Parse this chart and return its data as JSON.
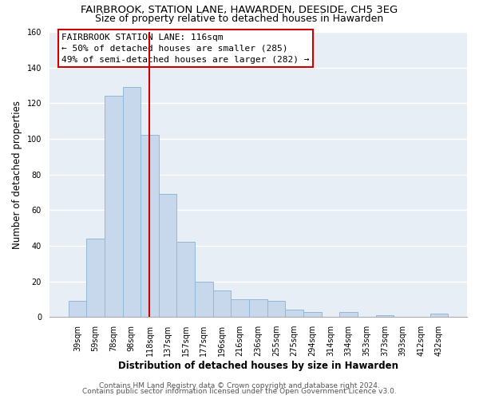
{
  "title": "FAIRBROOK, STATION LANE, HAWARDEN, DEESIDE, CH5 3EG",
  "subtitle": "Size of property relative to detached houses in Hawarden",
  "xlabel": "Distribution of detached houses by size in Hawarden",
  "ylabel": "Number of detached properties",
  "bar_labels": [
    "39sqm",
    "59sqm",
    "78sqm",
    "98sqm",
    "118sqm",
    "137sqm",
    "157sqm",
    "177sqm",
    "196sqm",
    "216sqm",
    "236sqm",
    "255sqm",
    "275sqm",
    "294sqm",
    "314sqm",
    "334sqm",
    "353sqm",
    "373sqm",
    "393sqm",
    "412sqm",
    "432sqm"
  ],
  "bar_values": [
    9,
    44,
    124,
    129,
    102,
    69,
    42,
    20,
    15,
    10,
    10,
    9,
    4,
    3,
    0,
    3,
    0,
    1,
    0,
    0,
    2
  ],
  "bar_color": "#c8d8ec",
  "bar_edge_color": "#90b8d8",
  "vline_x_index": 4,
  "vline_color": "#cc0000",
  "ylim": [
    0,
    160
  ],
  "yticks": [
    0,
    20,
    40,
    60,
    80,
    100,
    120,
    140,
    160
  ],
  "annotation_title": "FAIRBROOK STATION LANE: 116sqm",
  "annotation_line1": "← 50% of detached houses are smaller (285)",
  "annotation_line2": "49% of semi-detached houses are larger (282) →",
  "annotation_box_facecolor": "#ffffff",
  "annotation_box_edgecolor": "#cc0000",
  "footer_line1": "Contains HM Land Registry data © Crown copyright and database right 2024.",
  "footer_line2": "Contains public sector information licensed under the Open Government Licence v3.0.",
  "background_color": "#ffffff",
  "plot_background_color": "#e8eef5",
  "grid_color": "#ffffff",
  "title_fontsize": 9.5,
  "subtitle_fontsize": 9,
  "axis_label_fontsize": 8.5,
  "tick_fontsize": 7,
  "annotation_fontsize": 8,
  "footer_fontsize": 6.5
}
